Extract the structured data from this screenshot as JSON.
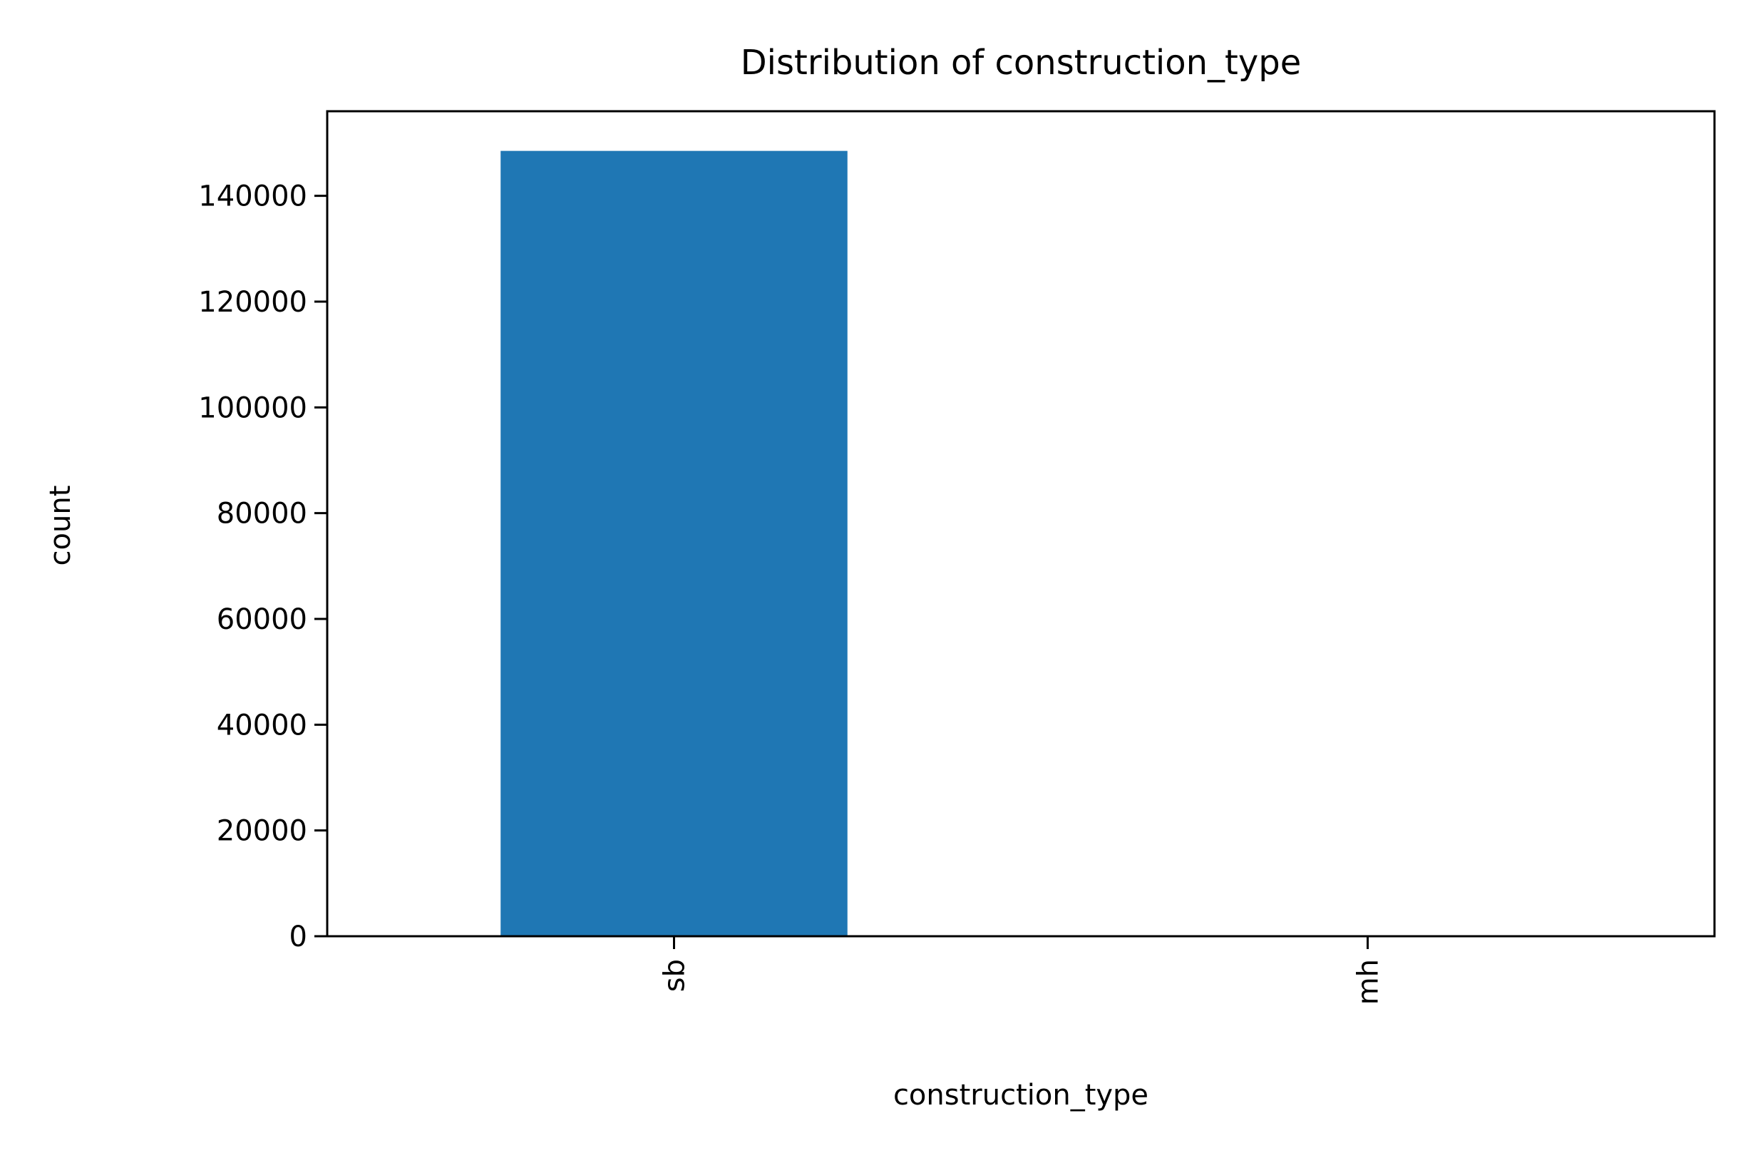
{
  "chart_data": {
    "type": "bar",
    "title": "Distribution of construction_type",
    "xlabel": "construction_type",
    "ylabel": "count",
    "categories": [
      "sb",
      "mh"
    ],
    "values": [
      148500,
      180
    ],
    "ylim": [
      0,
      156000
    ],
    "yticks": [
      0,
      20000,
      40000,
      60000,
      80000,
      100000,
      120000,
      140000
    ],
    "bar_color": "#1f77b4",
    "grid": false,
    "legend": "none"
  }
}
